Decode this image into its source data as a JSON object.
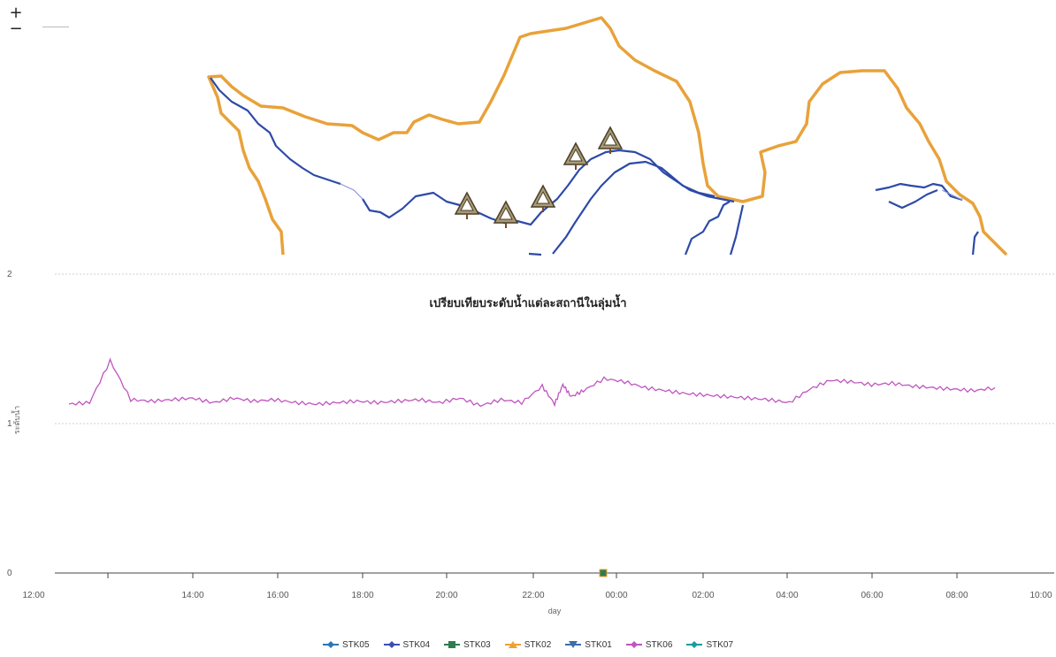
{
  "map": {
    "zoom_in": "+",
    "zoom_out": "−",
    "colors": {
      "boundary": "#e8a23a",
      "river": "#2d4aa8",
      "station_marker": "#a89a72"
    },
    "station_icon": "warning-triangle-icon"
  },
  "chart_data": {
    "type": "line",
    "title": "เปรียบเทียบระดับน้ำแต่ละสถานีในลุ่มน้ำ",
    "xlabel": "day",
    "ylabel": "ระดับน้ำ",
    "ylim": [
      0,
      2
    ],
    "y_ticks": [
      "0",
      "1",
      "2"
    ],
    "x_ticks": [
      "12:00",
      "14:00",
      "16:00",
      "18:00",
      "20:00",
      "22:00",
      "00:00",
      "02:00",
      "04:00",
      "06:00",
      "08:00",
      "10:00"
    ],
    "grid": "horizontal",
    "legend_position": "bottom",
    "series": [
      {
        "name": "STK05",
        "color": "#2a76b8",
        "marker": "diamond",
        "values": []
      },
      {
        "name": "STK04",
        "color": "#3b4fb0",
        "marker": "diamond",
        "values": []
      },
      {
        "name": "STK03",
        "color": "#2e7d4f",
        "marker": "square",
        "values": []
      },
      {
        "name": "STK02",
        "color": "#f0a030",
        "marker": "triangle",
        "values": []
      },
      {
        "name": "STK01",
        "color": "#3a6fa8",
        "marker": "triangle-down",
        "values": []
      },
      {
        "name": "STK06",
        "color": "#c054c0",
        "marker": "diamond",
        "x_hours": [
          0.0,
          0.5,
          1.0,
          1.5,
          2.0,
          2.5,
          3.0,
          3.5,
          4.0,
          4.5,
          5.0,
          5.5,
          6.0,
          6.5,
          7.0,
          7.5,
          8.0,
          8.5,
          9.0,
          9.5,
          10.0,
          10.5,
          11.0,
          11.5,
          11.8,
          12.0,
          12.2,
          12.5,
          13.0,
          13.5,
          14.0,
          14.5,
          15.0,
          15.5,
          16.0,
          16.5,
          17.0,
          17.5,
          18.0,
          18.5,
          19.0,
          19.5,
          20.0,
          20.5,
          21.0,
          21.5,
          22.0,
          22.5
        ],
        "values": [
          1.13,
          1.14,
          1.42,
          1.16,
          1.15,
          1.16,
          1.17,
          1.14,
          1.17,
          1.15,
          1.16,
          1.14,
          1.13,
          1.14,
          1.15,
          1.14,
          1.15,
          1.16,
          1.14,
          1.17,
          1.12,
          1.16,
          1.14,
          1.25,
          1.13,
          1.26,
          1.18,
          1.22,
          1.3,
          1.28,
          1.24,
          1.22,
          1.2,
          1.19,
          1.18,
          1.17,
          1.16,
          1.14,
          1.23,
          1.29,
          1.28,
          1.26,
          1.27,
          1.25,
          1.24,
          1.23,
          1.22,
          1.24
        ]
      },
      {
        "name": "STK07",
        "color": "#1a9c9c",
        "marker": "diamond",
        "values": []
      }
    ]
  }
}
